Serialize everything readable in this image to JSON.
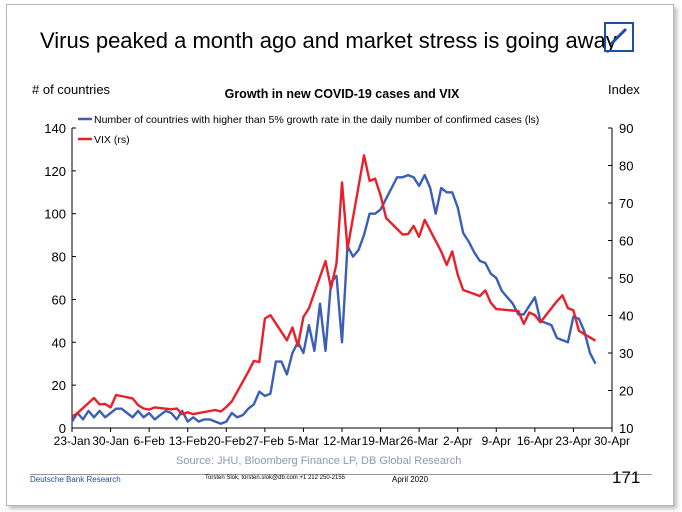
{
  "headline": "Virus peaked a month ago and market stress is going away",
  "logo": {
    "icon": "deutsche-bank-logo",
    "color": "#1f4ea3"
  },
  "footer": {
    "org": "Deutsche Bank Research",
    "contact": "Torsten Slok, torsten.slok@db.com  +1 212 250-2155",
    "date": "April 2020",
    "page": "171"
  },
  "chart_data": {
    "type": "line",
    "title": "Growth in new COVID-19 cases and VIX",
    "left_axis_label": "# of countries",
    "right_axis_label": "Index",
    "source": "Source: JHU, Bloomberg Finance LP, DB Global Research",
    "x_ticks": [
      "23-Jan",
      "30-Jan",
      "6-Feb",
      "13-Feb",
      "20-Feb",
      "27-Feb",
      "5-Mar",
      "12-Mar",
      "19-Mar",
      "26-Mar",
      "2-Apr",
      "9-Apr",
      "16-Apr",
      "23-Apr",
      "30-Apr"
    ],
    "y_left": {
      "min": 0,
      "max": 140,
      "ticks": [
        0,
        20,
        40,
        60,
        80,
        100,
        120,
        140
      ]
    },
    "y_right": {
      "min": 10,
      "max": 90,
      "ticks": [
        10,
        20,
        30,
        40,
        50,
        60,
        70,
        80,
        90
      ]
    },
    "grid": false,
    "legend": "top-left",
    "series": [
      {
        "name": "Number of countries with higher than 5% growth rate in the daily number of confirmed cases (ls)",
        "axis": "left",
        "color": "#3a5fb5",
        "points": [
          [
            "2020-01-23",
            3
          ],
          [
            "2020-01-24",
            7
          ],
          [
            "2020-01-25",
            4
          ],
          [
            "2020-01-26",
            8
          ],
          [
            "2020-01-27",
            5
          ],
          [
            "2020-01-28",
            8
          ],
          [
            "2020-01-29",
            5
          ],
          [
            "2020-01-30",
            7
          ],
          [
            "2020-01-31",
            9
          ],
          [
            "2020-02-01",
            9
          ],
          [
            "2020-02-02",
            7
          ],
          [
            "2020-02-03",
            5
          ],
          [
            "2020-02-04",
            8
          ],
          [
            "2020-02-05",
            5
          ],
          [
            "2020-02-06",
            7
          ],
          [
            "2020-02-07",
            4
          ],
          [
            "2020-02-08",
            6
          ],
          [
            "2020-02-09",
            8
          ],
          [
            "2020-02-10",
            7
          ],
          [
            "2020-02-11",
            4
          ],
          [
            "2020-02-12",
            8
          ],
          [
            "2020-02-13",
            3
          ],
          [
            "2020-02-14",
            5
          ],
          [
            "2020-02-15",
            3
          ],
          [
            "2020-02-16",
            4
          ],
          [
            "2020-02-17",
            4
          ],
          [
            "2020-02-18",
            3
          ],
          [
            "2020-02-19",
            2
          ],
          [
            "2020-02-20",
            3
          ],
          [
            "2020-02-21",
            7
          ],
          [
            "2020-02-22",
            5
          ],
          [
            "2020-02-23",
            6
          ],
          [
            "2020-02-24",
            9
          ],
          [
            "2020-02-25",
            11
          ],
          [
            "2020-02-26",
            17
          ],
          [
            "2020-02-27",
            15
          ],
          [
            "2020-02-28",
            16
          ],
          [
            "2020-02-29",
            31
          ],
          [
            "2020-03-01",
            31
          ],
          [
            "2020-03-02",
            25
          ],
          [
            "2020-03-03",
            35
          ],
          [
            "2020-03-04",
            40
          ],
          [
            "2020-03-05",
            35
          ],
          [
            "2020-03-06",
            48
          ],
          [
            "2020-03-07",
            36
          ],
          [
            "2020-03-08",
            58
          ],
          [
            "2020-03-09",
            36
          ],
          [
            "2020-03-10",
            68
          ],
          [
            "2020-03-11",
            71
          ],
          [
            "2020-03-12",
            40
          ],
          [
            "2020-03-13",
            85
          ],
          [
            "2020-03-14",
            80
          ],
          [
            "2020-03-15",
            83
          ],
          [
            "2020-03-16",
            90
          ],
          [
            "2020-03-17",
            100
          ],
          [
            "2020-03-18",
            100
          ],
          [
            "2020-03-19",
            102
          ],
          [
            "2020-03-20",
            107
          ],
          [
            "2020-03-21",
            112
          ],
          [
            "2020-03-22",
            117
          ],
          [
            "2020-03-23",
            117
          ],
          [
            "2020-03-24",
            118
          ],
          [
            "2020-03-25",
            117
          ],
          [
            "2020-03-26",
            113
          ],
          [
            "2020-03-27",
            118
          ],
          [
            "2020-03-28",
            112
          ],
          [
            "2020-03-29",
            100
          ],
          [
            "2020-03-30",
            112
          ],
          [
            "2020-03-31",
            110
          ],
          [
            "2020-04-01",
            110
          ],
          [
            "2020-04-02",
            103
          ],
          [
            "2020-04-03",
            91
          ],
          [
            "2020-04-04",
            87
          ],
          [
            "2020-04-05",
            82
          ],
          [
            "2020-04-06",
            78
          ],
          [
            "2020-04-07",
            77
          ],
          [
            "2020-04-08",
            72
          ],
          [
            "2020-04-09",
            70
          ],
          [
            "2020-04-10",
            64
          ],
          [
            "2020-04-11",
            61
          ],
          [
            "2020-04-12",
            58
          ],
          [
            "2020-04-13",
            53
          ],
          [
            "2020-04-14",
            53
          ],
          [
            "2020-04-15",
            57
          ],
          [
            "2020-04-16",
            61
          ],
          [
            "2020-04-17",
            50
          ],
          [
            "2020-04-18",
            49
          ],
          [
            "2020-04-19",
            48
          ],
          [
            "2020-04-20",
            42
          ],
          [
            "2020-04-21",
            41
          ],
          [
            "2020-04-22",
            40
          ],
          [
            "2020-04-23",
            52
          ],
          [
            "2020-04-24",
            51
          ],
          [
            "2020-04-25",
            45
          ],
          [
            "2020-04-26",
            35
          ],
          [
            "2020-04-27",
            30
          ]
        ]
      },
      {
        "name": "VIX (rs)",
        "axis": "right",
        "color": "#e8202a",
        "points": [
          [
            "2020-01-23",
            13
          ],
          [
            "2020-01-24",
            14
          ],
          [
            "2020-01-27",
            18
          ],
          [
            "2020-01-28",
            16.3
          ],
          [
            "2020-01-29",
            16.4
          ],
          [
            "2020-01-30",
            15.5
          ],
          [
            "2020-01-31",
            18.8
          ],
          [
            "2020-02-03",
            17.9
          ],
          [
            "2020-02-04",
            16.1
          ],
          [
            "2020-02-05",
            15.2
          ],
          [
            "2020-02-06",
            14.9
          ],
          [
            "2020-02-07",
            15.5
          ],
          [
            "2020-02-10",
            15
          ],
          [
            "2020-02-11",
            15.2
          ],
          [
            "2020-02-12",
            13.7
          ],
          [
            "2020-02-13",
            14.2
          ],
          [
            "2020-02-14",
            13.7
          ],
          [
            "2020-02-18",
            14.8
          ],
          [
            "2020-02-19",
            14.4
          ],
          [
            "2020-02-20",
            15.6
          ],
          [
            "2020-02-21",
            17.1
          ],
          [
            "2020-02-24",
            25
          ],
          [
            "2020-02-25",
            27.9
          ],
          [
            "2020-02-26",
            27.6
          ],
          [
            "2020-02-27",
            39.2
          ],
          [
            "2020-02-28",
            40.1
          ],
          [
            "2020-03-02",
            33.4
          ],
          [
            "2020-03-03",
            36.8
          ],
          [
            "2020-03-04",
            31.9
          ],
          [
            "2020-03-05",
            39.6
          ],
          [
            "2020-03-06",
            41.9
          ],
          [
            "2020-03-09",
            54.5
          ],
          [
            "2020-03-10",
            47.3
          ],
          [
            "2020-03-11",
            53.9
          ],
          [
            "2020-03-12",
            75.5
          ],
          [
            "2020-03-13",
            57.8
          ],
          [
            "2020-03-16",
            82.7
          ],
          [
            "2020-03-17",
            75.9
          ],
          [
            "2020-03-18",
            76.5
          ],
          [
            "2020-03-19",
            72
          ],
          [
            "2020-03-20",
            66
          ],
          [
            "2020-03-23",
            61.6
          ],
          [
            "2020-03-24",
            61.7
          ],
          [
            "2020-03-25",
            63.9
          ],
          [
            "2020-03-26",
            61
          ],
          [
            "2020-03-27",
            65.5
          ],
          [
            "2020-03-30",
            57.1
          ],
          [
            "2020-03-31",
            53.5
          ],
          [
            "2020-04-01",
            57.1
          ],
          [
            "2020-04-02",
            50.9
          ],
          [
            "2020-04-03",
            46.8
          ],
          [
            "2020-04-06",
            45.2
          ],
          [
            "2020-04-07",
            46.7
          ],
          [
            "2020-04-08",
            43.4
          ],
          [
            "2020-04-09",
            41.7
          ],
          [
            "2020-04-13",
            41.2
          ],
          [
            "2020-04-14",
            37.8
          ],
          [
            "2020-04-15",
            40.8
          ],
          [
            "2020-04-16",
            40.1
          ],
          [
            "2020-04-17",
            38.2
          ],
          [
            "2020-04-20",
            43.8
          ],
          [
            "2020-04-21",
            45.4
          ],
          [
            "2020-04-22",
            41.98
          ],
          [
            "2020-04-23",
            41.38
          ],
          [
            "2020-04-24",
            35.93
          ],
          [
            "2020-04-27",
            33.29
          ]
        ]
      }
    ]
  }
}
